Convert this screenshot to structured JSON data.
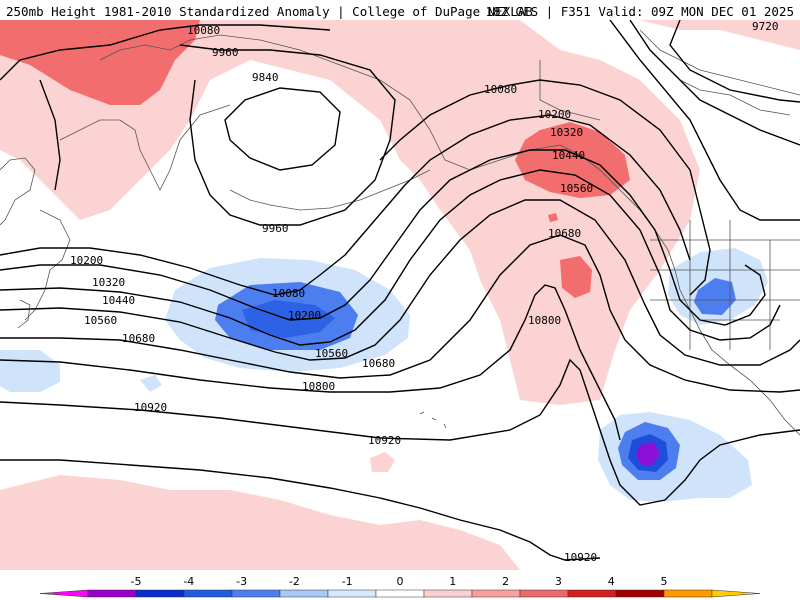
{
  "header": {
    "title": "250mb Height 1981-2010 Standardized Anomaly | College of DuPage NEXLAB",
    "run_info": "18Z GFS | F351 Valid: 09Z MON DEC 01 2025"
  },
  "contour_labels": {
    "l9720": "9720",
    "l9840": "9840",
    "l9960a": "9960",
    "l9960b": "9960",
    "l10080a": "10080",
    "l10080b": "10080",
    "l10080c": "10080",
    "l10200a": "10200",
    "l10200b": "10200",
    "l10200c": "10200",
    "l10320a": "10320",
    "l10320b": "10320",
    "l10440a": "10440",
    "l10440b": "10440",
    "l10560a": "10560",
    "l10560b": "10560",
    "l10560c": "10560",
    "l10680a": "10680",
    "l10680b": "10680",
    "l10680c": "10680",
    "l10800a": "10800",
    "l10800b": "10800",
    "l10920a": "10920",
    "l10920b": "10920",
    "l10920c": "10920"
  },
  "colorbar": {
    "ticks": [
      "-5",
      "-4",
      "-3",
      "-2",
      "-1",
      "0",
      "1",
      "2",
      "3",
      "4",
      "5"
    ],
    "colors": [
      "#ff00ff",
      "#9a00cc",
      "#0a2ecc",
      "#1e5ce0",
      "#4d7ef0",
      "#a8c8f8",
      "#d6e8fc",
      "#ffffff",
      "#fcd0d0",
      "#f8a0a0",
      "#ec6a6a",
      "#d22020",
      "#a00000",
      "#ff9900",
      "#ffcc00"
    ]
  },
  "colors": {
    "neg1": "#cfe3fb",
    "neg2": "#4d7ef0",
    "neg3": "#1e4fdc",
    "neg4": "#8a10d8",
    "pos1": "#fcd3d3",
    "pos2": "#f68c8c",
    "pos3": "#ec6a6a",
    "contour": "#000000",
    "coast": "#555555"
  }
}
